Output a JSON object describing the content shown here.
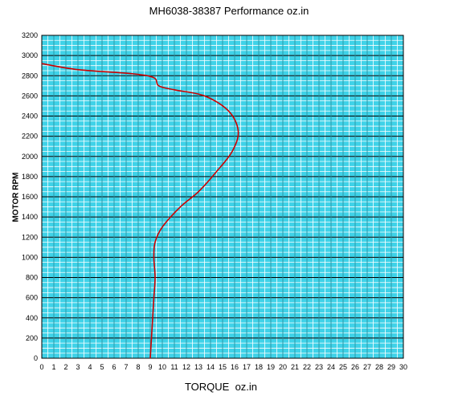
{
  "chart_data": {
    "type": "line",
    "title": "MH6038-38387 Performance oz.in",
    "xlabel": "TORQUE  oz.in",
    "ylabel": "MOTOR RPM",
    "xlim": [
      0,
      30
    ],
    "ylim": [
      0,
      3200
    ],
    "x_ticks": [
      0,
      1,
      2,
      3,
      4,
      5,
      6,
      7,
      8,
      9,
      10,
      11,
      12,
      13,
      14,
      15,
      16,
      17,
      18,
      19,
      20,
      21,
      22,
      23,
      24,
      25,
      26,
      27,
      28,
      29,
      30
    ],
    "y_ticks": [
      0,
      200,
      400,
      600,
      800,
      1000,
      1200,
      1400,
      1600,
      1800,
      2000,
      2200,
      2400,
      2600,
      2800,
      3000,
      3200
    ],
    "grid": true,
    "colors": {
      "plot_background": "#3fd2e8",
      "minor_grid": "#ffffff",
      "major_grid": "#000000",
      "curve": "#cc0000"
    },
    "series": [
      {
        "points": [
          {
            "x": 9.0,
            "y": 0
          },
          {
            "x": 9.1,
            "y": 200
          },
          {
            "x": 9.2,
            "y": 400
          },
          {
            "x": 9.3,
            "y": 600
          },
          {
            "x": 9.4,
            "y": 800
          },
          {
            "x": 9.3,
            "y": 1000
          },
          {
            "x": 9.4,
            "y": 1150
          },
          {
            "x": 10.0,
            "y": 1300
          },
          {
            "x": 11.5,
            "y": 1500
          },
          {
            "x": 13.0,
            "y": 1650
          },
          {
            "x": 14.5,
            "y": 1850
          },
          {
            "x": 15.8,
            "y": 2050
          },
          {
            "x": 16.3,
            "y": 2250
          },
          {
            "x": 15.5,
            "y": 2450
          },
          {
            "x": 13.5,
            "y": 2600
          },
          {
            "x": 11.0,
            "y": 2660
          },
          {
            "x": 9.7,
            "y": 2700
          },
          {
            "x": 9.3,
            "y": 2780
          },
          {
            "x": 7.5,
            "y": 2820
          },
          {
            "x": 3.0,
            "y": 2860
          },
          {
            "x": 0.0,
            "y": 2920
          }
        ]
      }
    ]
  }
}
